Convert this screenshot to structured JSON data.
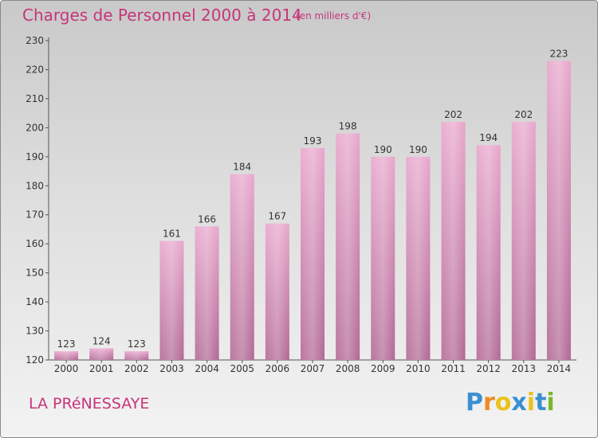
{
  "header": {
    "title": "Charges de Personnel 2000 à 2014",
    "unit": "(en milliers d'€)"
  },
  "footer": {
    "place": "LA PRéNESSAYE",
    "logo": "Proxiti"
  },
  "colors": {
    "title": "#c6357a",
    "bar_light": "#e8a6cc",
    "bar_dark": "#b26894",
    "logo_letters": [
      "#3a8fd1",
      "#f08a24",
      "#e9c21c",
      "#3a8fd1",
      "#e9c21c",
      "#3a8fd1",
      "#7ab829"
    ]
  },
  "chart_data": {
    "type": "bar",
    "categories": [
      "2000",
      "2001",
      "2002",
      "2003",
      "2004",
      "2005",
      "2006",
      "2007",
      "2008",
      "2009",
      "2010",
      "2011",
      "2012",
      "2013",
      "2014"
    ],
    "values": [
      123,
      124,
      123,
      161,
      166,
      184,
      167,
      193,
      198,
      190,
      190,
      202,
      194,
      202,
      223
    ],
    "data_labels": [
      "123",
      "124",
      "123",
      "161",
      "166",
      "184",
      "167",
      "193",
      "198",
      "190",
      "190",
      "202",
      "194",
      "202",
      "223"
    ],
    "ylim": [
      120,
      230
    ],
    "yticks": [
      120,
      130,
      140,
      150,
      160,
      170,
      180,
      190,
      200,
      210,
      220,
      230
    ],
    "title": "Charges de Personnel 2000 à 2014",
    "xlabel": "",
    "ylabel": "",
    "grid": false,
    "legend": "none"
  }
}
